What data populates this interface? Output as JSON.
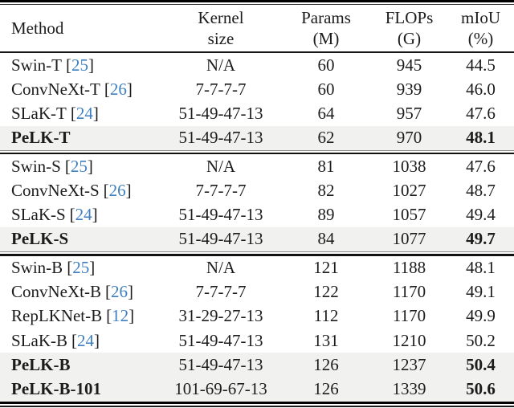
{
  "colors": {
    "citation_blue": "#3e7fc1",
    "highlight_row": "#f1f1ef",
    "text": "#1c1c1c",
    "rule": "#000000"
  },
  "citation": {
    "open": "[",
    "close": "]"
  },
  "header": {
    "method": "Method",
    "kernel": {
      "line1": "Kernel",
      "line2": "size"
    },
    "params": {
      "line1": "Params",
      "line2": "(M)"
    },
    "flops": {
      "line1": "FLOPs",
      "line2": "(G)"
    },
    "miou": {
      "line1": "mIoU",
      "line2": "(%)"
    }
  },
  "sections": [
    {
      "rows": [
        {
          "method": "Swin-T",
          "cite": "25",
          "kernel": "N/A",
          "params": "60",
          "flops": "945",
          "miou": "44.5",
          "highlight": false,
          "bold": false
        },
        {
          "method": "ConvNeXt-T",
          "cite": "26",
          "kernel": "7-7-7-7",
          "params": "60",
          "flops": "939",
          "miou": "46.0",
          "highlight": false,
          "bold": false
        },
        {
          "method": "SLaK-T",
          "cite": "24",
          "kernel": "51-49-47-13",
          "params": "64",
          "flops": "957",
          "miou": "47.6",
          "highlight": false,
          "bold": false
        },
        {
          "method": "PeLK-T",
          "kernel": "51-49-47-13",
          "params": "62",
          "flops": "970",
          "miou": "48.1",
          "highlight": true,
          "bold": true
        }
      ]
    },
    {
      "rows": [
        {
          "method": "Swin-S",
          "cite": "25",
          "kernel": "N/A",
          "params": "81",
          "flops": "1038",
          "miou": "47.6",
          "highlight": false,
          "bold": false
        },
        {
          "method": "ConvNeXt-S",
          "cite": "26",
          "kernel": "7-7-7-7",
          "params": "82",
          "flops": "1027",
          "miou": "48.7",
          "highlight": false,
          "bold": false
        },
        {
          "method": "SLaK-S",
          "cite": "24",
          "kernel": "51-49-47-13",
          "params": "89",
          "flops": "1057",
          "miou": "49.4",
          "highlight": false,
          "bold": false
        },
        {
          "method": "PeLK-S",
          "kernel": "51-49-47-13",
          "params": "84",
          "flops": "1077",
          "miou": "49.7",
          "highlight": true,
          "bold": true
        }
      ]
    },
    {
      "rows": [
        {
          "method": "Swin-B",
          "cite": "25",
          "kernel": "N/A",
          "params": "121",
          "flops": "1188",
          "miou": "48.1",
          "highlight": false,
          "bold": false
        },
        {
          "method": "ConvNeXt-B",
          "cite": "26",
          "kernel": "7-7-7-7",
          "params": "122",
          "flops": "1170",
          "miou": "49.1",
          "highlight": false,
          "bold": false
        },
        {
          "method": "RepLKNet-B",
          "cite": "12",
          "kernel": "31-29-27-13",
          "params": "112",
          "flops": "1170",
          "miou": "49.9",
          "highlight": false,
          "bold": false
        },
        {
          "method": "SLaK-B",
          "cite": "24",
          "kernel": "51-49-47-13",
          "params": "131",
          "flops": "1210",
          "miou": "50.2",
          "highlight": false,
          "bold": false
        },
        {
          "method": "PeLK-B",
          "kernel": "51-49-47-13",
          "params": "126",
          "flops": "1237",
          "miou": "50.4",
          "highlight": true,
          "bold": true
        },
        {
          "method": "PeLK-B-101",
          "kernel": "101-69-67-13",
          "params": "126",
          "flops": "1339",
          "miou": "50.6",
          "highlight": true,
          "bold": true
        }
      ]
    }
  ]
}
